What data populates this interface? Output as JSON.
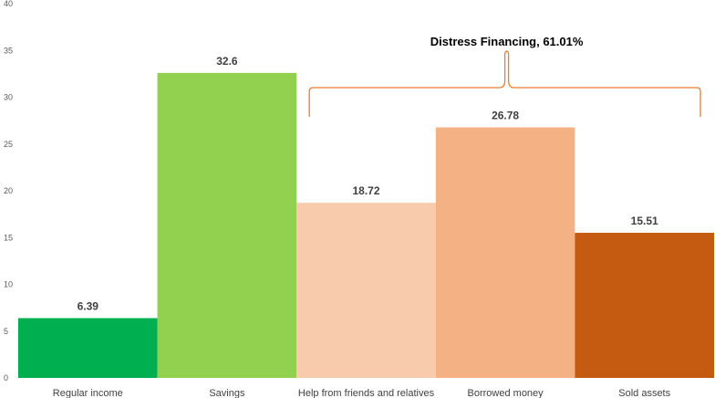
{
  "chart_data": {
    "type": "bar",
    "categories": [
      "Regular income",
      "Savings",
      "Help from friends and relatives",
      "Borrowed money",
      "Sold assets"
    ],
    "values": [
      6.39,
      32.6,
      18.72,
      26.78,
      15.51
    ],
    "data_labels": [
      "6.39",
      "32.6",
      "18.72",
      "26.78",
      "15.51"
    ],
    "colors": [
      "#00b050",
      "#92d050",
      "#f8cbad",
      "#f4b183",
      "#c55a11"
    ],
    "bracket_color": "#ed7d31",
    "ylim": [
      0,
      40
    ],
    "yticks": [
      0,
      5,
      10,
      15,
      20,
      25,
      30,
      35,
      40
    ],
    "ytick_labels": [
      "0",
      "5",
      "10",
      "15",
      "20",
      "25",
      "30",
      "35",
      "40"
    ],
    "grid": false,
    "legend": "none",
    "title": "",
    "xlabel": "",
    "ylabel": "",
    "annotation": {
      "text": "Distress Financing, 61.01%",
      "spans_categories": [
        2,
        4
      ]
    }
  }
}
